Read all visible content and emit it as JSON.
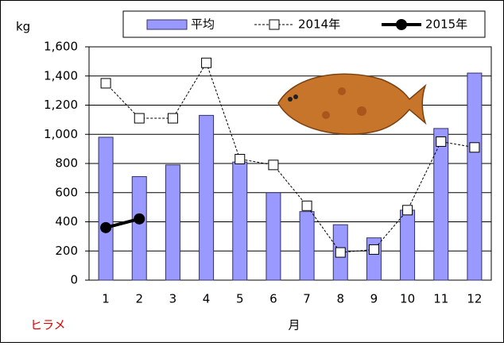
{
  "chart_data": {
    "type": "bar-line",
    "y_unit_label": "kg",
    "x_label": "月",
    "annotation": "ヒラメ",
    "categories": [
      "1",
      "2",
      "3",
      "4",
      "5",
      "6",
      "7",
      "8",
      "9",
      "10",
      "11",
      "12"
    ],
    "series": [
      {
        "name": "平均",
        "type": "bar",
        "color": "#9999ff",
        "values": [
          980,
          710,
          790,
          1130,
          810,
          600,
          470,
          380,
          290,
          480,
          1040,
          1420
        ]
      },
      {
        "name": "2014年",
        "type": "line",
        "color": "#000000",
        "dashed": true,
        "marker": "square",
        "values": [
          1350,
          1110,
          1110,
          1490,
          830,
          790,
          510,
          190,
          210,
          480,
          950,
          910
        ]
      },
      {
        "name": "2015年",
        "type": "line",
        "color": "#000000",
        "dashed": false,
        "marker": "circle",
        "values": [
          360,
          420,
          null,
          null,
          null,
          null,
          null,
          null,
          null,
          null,
          null,
          null
        ]
      }
    ],
    "ylim": [
      0,
      1600
    ],
    "yticks": [
      0,
      200,
      400,
      600,
      800,
      {
        "value": 1000,
        "label": "1,000"
      },
      {
        "value": 1200,
        "label": "1,200"
      },
      {
        "value": 1400,
        "label": "1,400"
      },
      {
        "value": 1600,
        "label": "1,600"
      }
    ],
    "grid": true,
    "legend": "top"
  }
}
